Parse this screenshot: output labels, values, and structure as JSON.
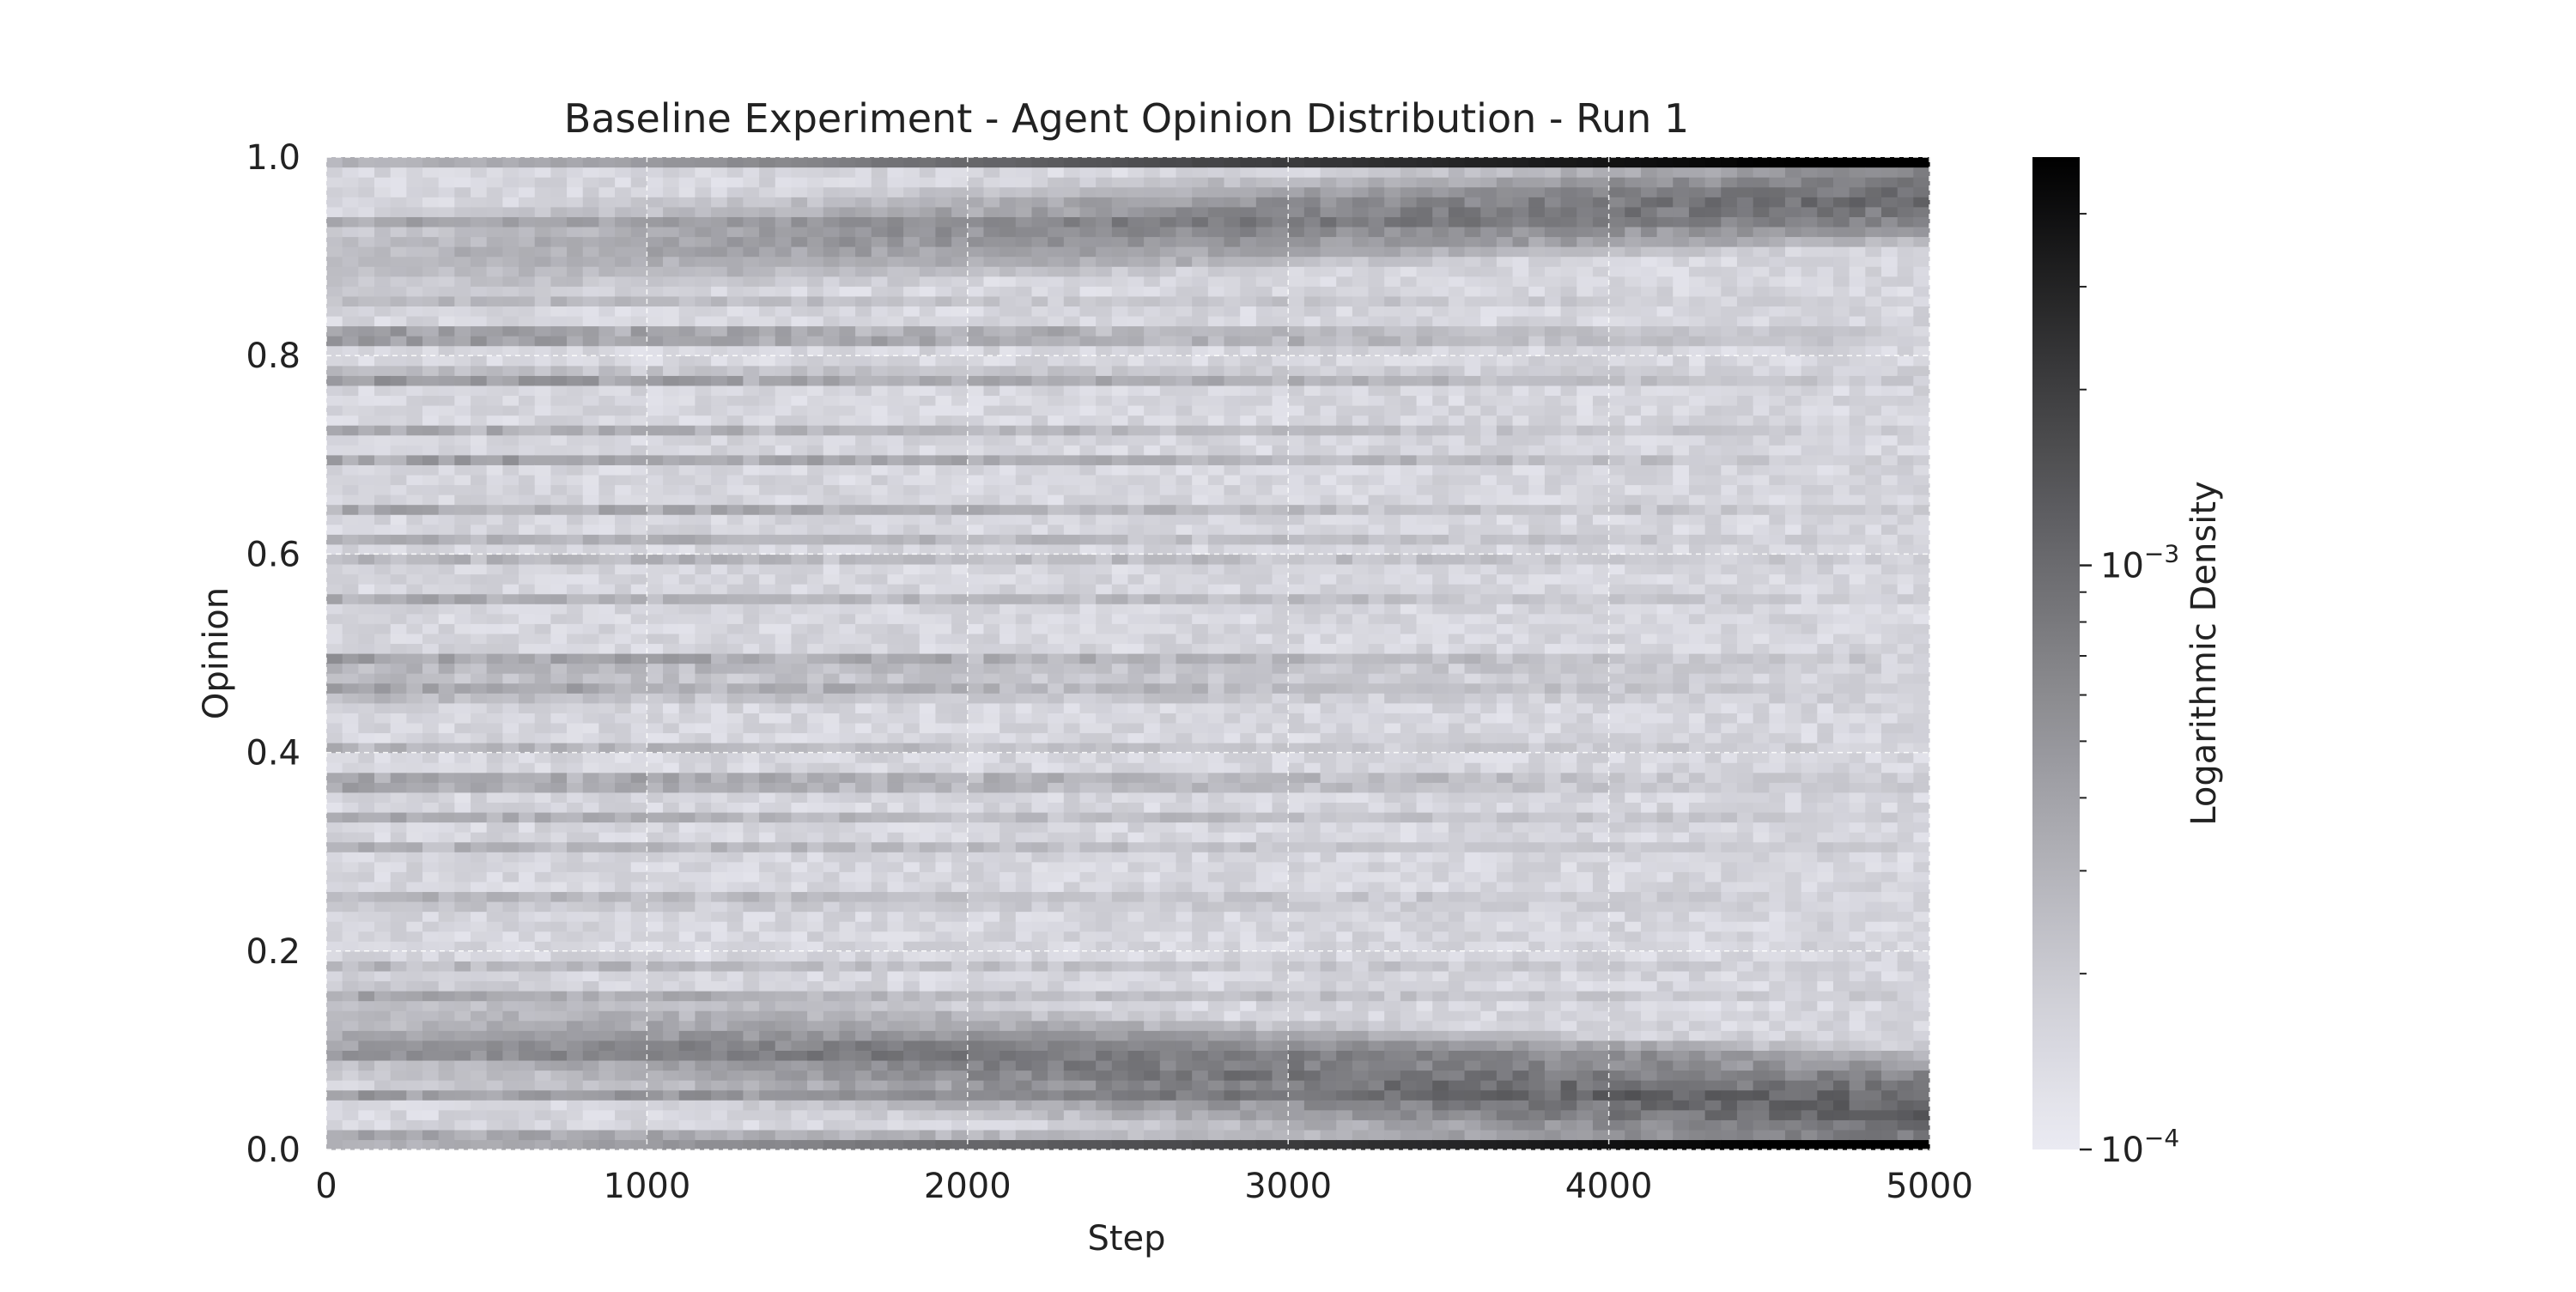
{
  "chart_data": {
    "type": "heatmap",
    "title": "Baseline Experiment - Agent Opinion Distribution - Run 1",
    "xlabel": "Step",
    "ylabel": "Opinion",
    "xlim": [
      0,
      5000
    ],
    "ylim": [
      0.0,
      1.0
    ],
    "xticks": [
      "0",
      "1000",
      "2000",
      "3000",
      "4000",
      "5000"
    ],
    "xtick_values": [
      0,
      1000,
      2000,
      3000,
      4000,
      5000
    ],
    "yticks": [
      "0.0",
      "0.2",
      "0.4",
      "0.6",
      "0.8",
      "1.0"
    ],
    "ytick_values": [
      0.0,
      0.2,
      0.4,
      0.6,
      0.8,
      1.0
    ],
    "grid": true,
    "background_color": "#eaeaf2",
    "colormap": [
      "#eaeaf2",
      "#000000"
    ],
    "colorbar": {
      "label": "Logarithmic Density",
      "scale": "log",
      "range": [
        0.0001,
        0.005
      ],
      "major_ticks": [
        {
          "base": "10",
          "exp": "−4",
          "value": 0.0001
        },
        {
          "base": "10",
          "exp": "−3",
          "value": 0.001
        }
      ],
      "minor_tick_values": [
        0.0002,
        0.0003,
        0.0004,
        0.0005,
        0.0006,
        0.0007,
        0.0008,
        0.0009,
        0.002,
        0.003,
        0.004
      ]
    },
    "density_features": {
      "x_bins": 100,
      "y_bins": 100,
      "description_bands": [
        {
          "opinion_center": 0.0,
          "density_start": 0.00015,
          "density_end": 0.005
        },
        {
          "opinion_center": 1.0,
          "density_start": 0.00015,
          "density_end": 0.005
        },
        {
          "opinion_center": 0.04,
          "density_start": 0.0002,
          "density_end": 0.0015
        },
        {
          "opinion_center": 0.96,
          "density_start": 0.0002,
          "density_end": 0.0012
        }
      ]
    }
  }
}
